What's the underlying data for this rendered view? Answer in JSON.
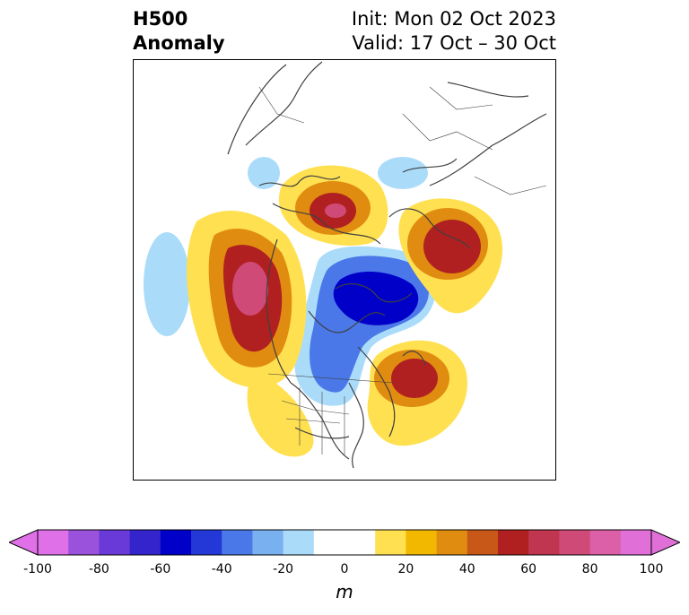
{
  "title": {
    "left_line1": "H500",
    "left_line2": "Anomaly",
    "right_line1": "Init: Mon 02 Oct 2023",
    "right_line2": "Valid: 17 Oct – 30 Oct"
  },
  "colorbar": {
    "unit": "m",
    "ticks": [
      "-100",
      "-80",
      "-60",
      "-40",
      "-20",
      "0",
      "20",
      "40",
      "60",
      "80",
      "100"
    ],
    "colors": [
      "#e070e8",
      "#9a52dc",
      "#6a3ad8",
      "#3424cc",
      "#0000c8",
      "#2438d8",
      "#4a78e8",
      "#78b0f0",
      "#aadcfa",
      "#ffffff",
      "#ffffff",
      "#ffe050",
      "#f2b800",
      "#e08c10",
      "#c85818",
      "#b02020",
      "#c03650",
      "#d04a78",
      "#dc60a8",
      "#e070d8"
    ],
    "extend": "both"
  },
  "colors": {
    "coastline": "#404040",
    "neg_light": "#aadcfa",
    "neg_mid": "#4a78e8",
    "neg_dark": "#0000c8",
    "pos_yellow": "#ffe050",
    "pos_gold": "#f2b800",
    "pos_orange": "#e08c10",
    "pos_red": "#b02020",
    "pos_magenta": "#d04a78"
  }
}
